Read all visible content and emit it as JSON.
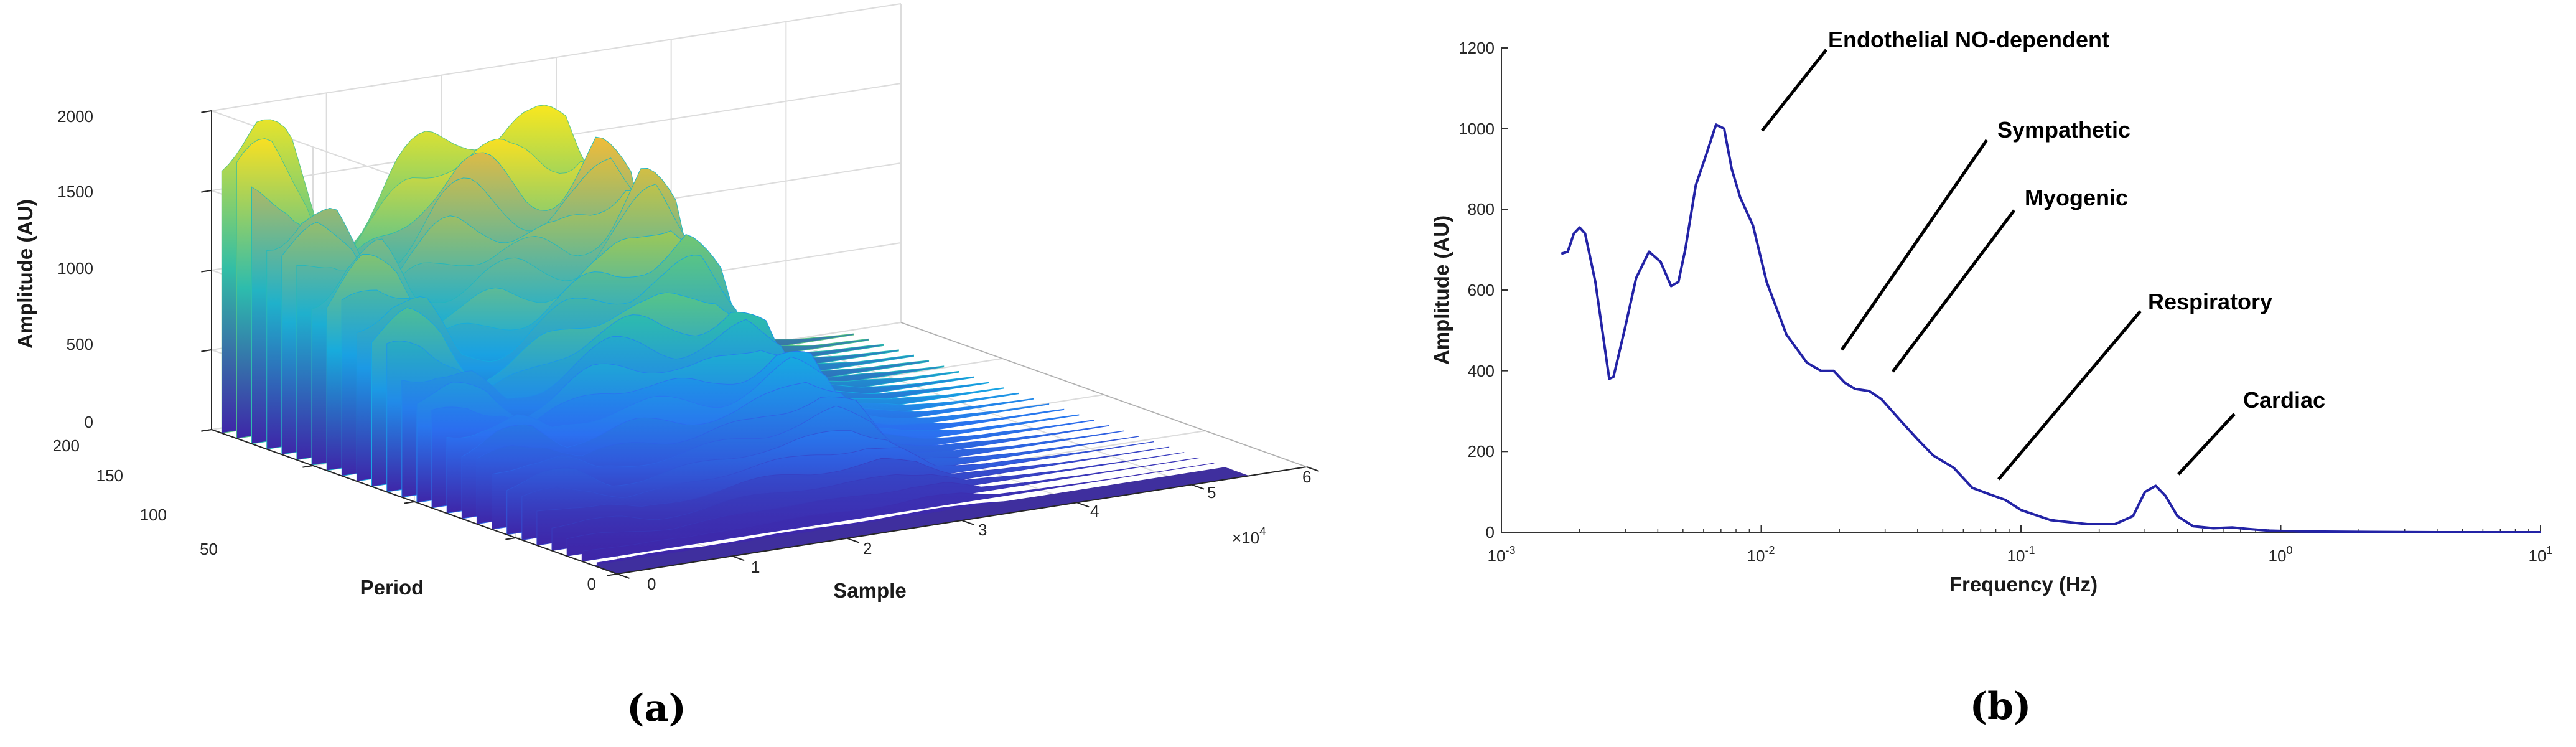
{
  "chart_data": [
    {
      "type": "surface",
      "panel_label": "(a)",
      "xlabel": "Sample",
      "ylabel": "Period",
      "zlabel": "Amplitude (AU)",
      "x_ticks": [
        "0",
        "1",
        "2",
        "3",
        "4",
        "5",
        "6"
      ],
      "x_multiplier": "×10",
      "x_multiplier_exp": "4",
      "y_ticks": [
        "0",
        "50",
        "100",
        "150",
        "200"
      ],
      "z_ticks": [
        "0",
        "500",
        "1000",
        "1500",
        "2000"
      ],
      "xlim": [
        0,
        60000
      ],
      "ylim": [
        0,
        200
      ],
      "zlim": [
        0,
        2000
      ],
      "ridge_profile": {
        "x": [
          0,
          3000,
          6000,
          9000,
          12000,
          15000,
          18000,
          21000,
          24000,
          27000,
          30000,
          33000,
          36000,
          40000,
          45000,
          50000,
          55000
        ],
        "amplitude": [
          1700,
          1850,
          1750,
          1250,
          1350,
          1520,
          1600,
          1600,
          1550,
          1650,
          1850,
          1500,
          450,
          220,
          80,
          30,
          10
        ]
      },
      "colormap": [
        "#3e26a8",
        "#2b6ff0",
        "#16a9e1",
        "#2fbea8",
        "#8ccb5b",
        "#f0b83a",
        "#f9e71e"
      ],
      "grid": true
    },
    {
      "type": "line",
      "panel_label": "(b)",
      "xlabel": "Frequency (Hz)",
      "ylabel": "Amplitude (AU)",
      "xscale": "log",
      "xlim": [
        0.001,
        10
      ],
      "ylim": [
        0,
        1200
      ],
      "x_tick_base": "10",
      "x_tick_exponents": [
        "-3",
        "-2",
        "-1",
        "0",
        "1"
      ],
      "y_ticks": [
        "0",
        "200",
        "400",
        "600",
        "800",
        "1000",
        "1200"
      ],
      "grid": false,
      "series": [
        {
          "color": "#2323a6",
          "x": [
            0.0017,
            0.0018,
            0.0019,
            0.002,
            0.0021,
            0.0023,
            0.0026,
            0.0027,
            0.003,
            0.0033,
            0.0037,
            0.0041,
            0.0045,
            0.0048,
            0.0051,
            0.0056,
            0.0061,
            0.0067,
            0.0072,
            0.0077,
            0.0083,
            0.0093,
            0.0105,
            0.0125,
            0.015,
            0.017,
            0.019,
            0.021,
            0.023,
            0.026,
            0.029,
            0.034,
            0.04,
            0.046,
            0.055,
            0.065,
            0.075,
            0.087,
            0.1,
            0.13,
            0.18,
            0.23,
            0.27,
            0.3,
            0.33,
            0.36,
            0.4,
            0.46,
            0.55,
            0.65,
            0.75,
            0.9,
            1.2,
            2.0,
            4.0,
            10.0
          ],
          "y": [
            690,
            695,
            740,
            755,
            740,
            620,
            380,
            385,
            510,
            630,
            695,
            670,
            610,
            620,
            700,
            860,
            930,
            1010,
            1000,
            900,
            830,
            760,
            620,
            490,
            420,
            400,
            400,
            370,
            355,
            350,
            330,
            280,
            230,
            190,
            160,
            110,
            95,
            80,
            55,
            30,
            20,
            20,
            40,
            100,
            115,
            90,
            40,
            15,
            10,
            12,
            8,
            4,
            2,
            1,
            0,
            0
          ]
        }
      ],
      "annotations": [
        {
          "label": "Endothelial NO-dependent",
          "x": 0.0098,
          "y": 980
        },
        {
          "label": "Sympathetic",
          "x": 0.019,
          "y": 440
        },
        {
          "label": "Myogenic",
          "x": 0.029,
          "y": 395
        },
        {
          "label": "Respiratory",
          "x": 0.075,
          "y": 130
        },
        {
          "label": "Cardiac",
          "x": 0.37,
          "y": 140
        }
      ]
    }
  ]
}
